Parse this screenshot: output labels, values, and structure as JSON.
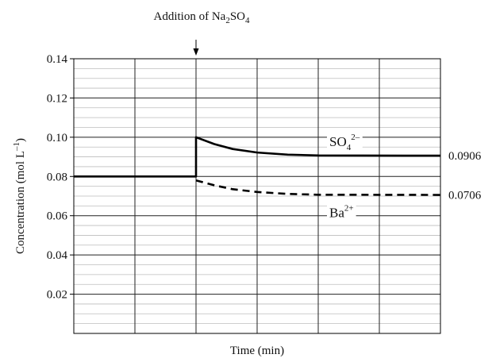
{
  "chart_data": {
    "type": "line",
    "title": "",
    "xlabel": "Time (min)",
    "ylabel": "Concentration (mol L",
    "ylabel_sup": "–1",
    "ylabel_close": ")",
    "ylim": [
      0,
      0.14
    ],
    "y_ticks": [
      0.02,
      0.04,
      0.06,
      0.08,
      0.1,
      0.12,
      0.14
    ],
    "y_tick_labels": [
      "0.02",
      "0.04",
      "0.06",
      "0.08",
      "0.10",
      "0.12",
      "0.14"
    ],
    "xlim": [
      0,
      6
    ],
    "x_ticks_labeled": false,
    "grid": true,
    "annotation": {
      "text": "Addition of Na",
      "sub1": "2",
      "mid": "SO",
      "sub2": "4",
      "x": 2
    },
    "series": [
      {
        "name": "SO",
        "name_sub": "4",
        "name_sup": "2–",
        "style": "solid",
        "color": "#000000",
        "end_value_label": "0.0906",
        "points": [
          [
            0,
            0.08
          ],
          [
            2,
            0.08
          ],
          [
            2,
            0.1
          ],
          [
            2.3,
            0.0965
          ],
          [
            2.6,
            0.094
          ],
          [
            3,
            0.0922
          ],
          [
            3.5,
            0.0911
          ],
          [
            4,
            0.0907
          ],
          [
            6,
            0.0906
          ]
        ]
      },
      {
        "name": "Ba",
        "name_sup": "2+",
        "style": "dashed",
        "color": "#000000",
        "end_value_label": "0.0706",
        "points": [
          [
            2,
            0.078
          ],
          [
            2.3,
            0.0755
          ],
          [
            2.6,
            0.0735
          ],
          [
            3,
            0.0721
          ],
          [
            3.5,
            0.0711
          ],
          [
            4,
            0.0707
          ],
          [
            6,
            0.0706
          ]
        ]
      }
    ]
  }
}
